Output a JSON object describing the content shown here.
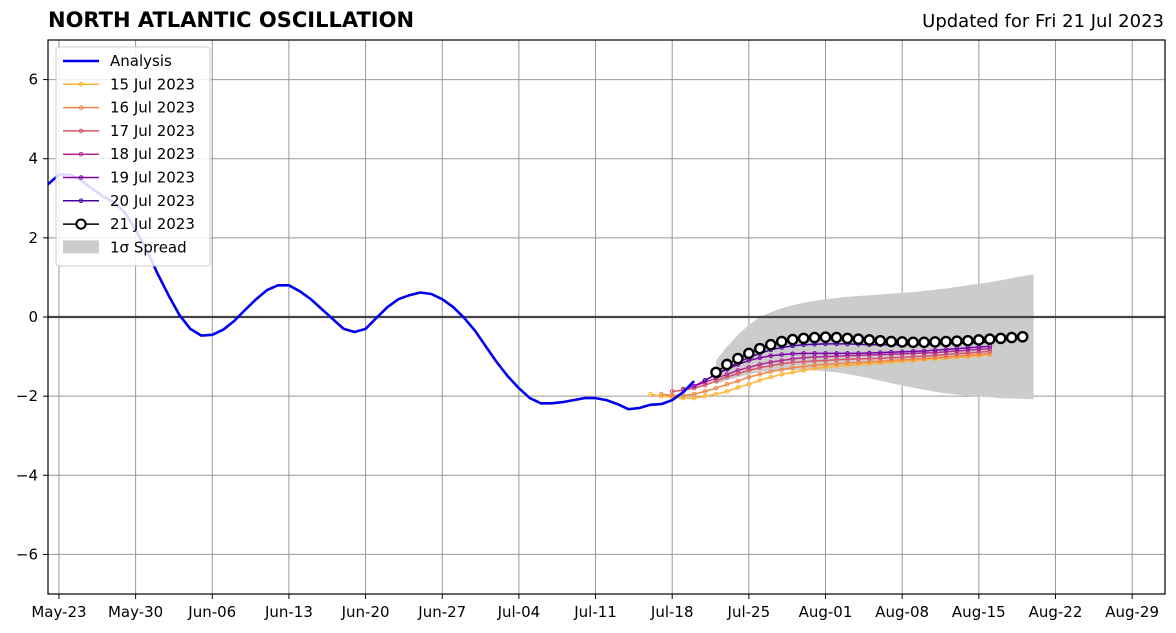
{
  "chart_data": {
    "type": "line",
    "title": "NORTH ATLANTIC OSCILLATION",
    "subtitle": "Updated for Fri 21 Jul 2023",
    "xlabel": "",
    "ylabel": "",
    "xlim": [
      "2023-05-22",
      "2023-09-01"
    ],
    "ylim": [
      -7,
      7
    ],
    "x_ticks": [
      "2023-05-23",
      "2023-05-30",
      "2023-06-06",
      "2023-06-13",
      "2023-06-20",
      "2023-06-27",
      "2023-07-04",
      "2023-07-11",
      "2023-07-18",
      "2023-07-25",
      "2023-08-01",
      "2023-08-08",
      "2023-08-15",
      "2023-08-22",
      "2023-08-29"
    ],
    "x_tick_labels": [
      "May-23",
      "May-30",
      "Jun-06",
      "Jun-13",
      "Jun-20",
      "Jun-27",
      "Jul-04",
      "Jul-11",
      "Jul-18",
      "Jul-25",
      "Aug-01",
      "Aug-08",
      "Aug-15",
      "Aug-22",
      "Aug-29"
    ],
    "y_ticks": [
      -6,
      -4,
      -2,
      0,
      2,
      4,
      6
    ],
    "y_tick_labels": [
      "−6",
      "−4",
      "−2",
      "0",
      "2",
      "4",
      "6"
    ],
    "grid": true,
    "legend_position": "top-left",
    "zero_line": 0,
    "analysis": {
      "name": "Analysis",
      "color": "#0000ee",
      "start": "2023-05-22",
      "values": [
        3.35,
        3.6,
        3.6,
        3.45,
        3.25,
        3.05,
        2.9,
        2.65,
        2.2,
        1.7,
        1.1,
        0.55,
        0.05,
        -0.3,
        -0.47,
        -0.45,
        -0.32,
        -0.1,
        0.18,
        0.45,
        0.68,
        0.8,
        0.8,
        0.65,
        0.45,
        0.2,
        -0.05,
        -0.3,
        -0.38,
        -0.3,
        -0.02,
        0.25,
        0.45,
        0.55,
        0.62,
        0.58,
        0.45,
        0.25,
        -0.02,
        -0.35,
        -0.75,
        -1.15,
        -1.5,
        -1.8,
        -2.05,
        -2.18,
        -2.18,
        -2.15,
        -2.1,
        -2.05,
        -2.05,
        -2.1,
        -2.2,
        -2.33,
        -2.3,
        -2.22,
        -2.2,
        -2.1,
        -1.9,
        -1.62
      ]
    },
    "forecasts": [
      {
        "name": "15 Jul 2023",
        "color": "#fdb42f",
        "start": "2023-07-16",
        "values": [
          -1.95,
          -2.0,
          -2.03,
          -2.05,
          -2.05,
          -2.0,
          -1.95,
          -1.88,
          -1.78,
          -1.7,
          -1.6,
          -1.52,
          -1.45,
          -1.4,
          -1.35,
          -1.3,
          -1.27,
          -1.24,
          -1.22,
          -1.2,
          -1.18,
          -1.16,
          -1.14,
          -1.12,
          -1.1,
          -1.08,
          -1.06,
          -1.04,
          -1.02,
          -1.0,
          -0.98,
          -0.95
        ]
      },
      {
        "name": "16 Jul 2023",
        "color": "#f28848",
        "start": "2023-07-17",
        "values": [
          -1.95,
          -1.98,
          -1.98,
          -1.95,
          -1.88,
          -1.8,
          -1.7,
          -1.62,
          -1.52,
          -1.45,
          -1.38,
          -1.33,
          -1.28,
          -1.25,
          -1.22,
          -1.2,
          -1.18,
          -1.16,
          -1.15,
          -1.13,
          -1.12,
          -1.1,
          -1.08,
          -1.07,
          -1.05,
          -1.03,
          -1.01,
          -0.99,
          -0.97,
          -0.95,
          -0.93
        ]
      },
      {
        "name": "17 Jul 2023",
        "color": "#d8576b",
        "start": "2023-07-18",
        "values": [
          -1.88,
          -1.85,
          -1.8,
          -1.72,
          -1.62,
          -1.52,
          -1.43,
          -1.35,
          -1.28,
          -1.23,
          -1.18,
          -1.15,
          -1.13,
          -1.11,
          -1.1,
          -1.08,
          -1.07,
          -1.06,
          -1.05,
          -1.04,
          -1.03,
          -1.02,
          -1.0,
          -0.99,
          -0.97,
          -0.95,
          -0.93,
          -0.91,
          -0.89,
          -0.87
        ]
      },
      {
        "name": "18 Jul 2023",
        "color": "#b12a90",
        "start": "2023-07-19",
        "values": [
          -1.82,
          -1.75,
          -1.65,
          -1.55,
          -1.45,
          -1.35,
          -1.27,
          -1.2,
          -1.14,
          -1.1,
          -1.06,
          -1.03,
          -1.01,
          -1.0,
          -0.99,
          -0.98,
          -0.97,
          -0.96,
          -0.95,
          -0.94,
          -0.93,
          -0.92,
          -0.91,
          -0.9,
          -0.88,
          -0.86,
          -0.84,
          -0.82,
          -0.8
        ]
      },
      {
        "name": "19 Jul 2023",
        "color": "#7e03a8",
        "start": "2023-07-20",
        "values": [
          -1.75,
          -1.6,
          -1.45,
          -1.32,
          -1.2,
          -1.1,
          -1.03,
          -0.98,
          -0.95,
          -0.93,
          -0.92,
          -0.92,
          -0.92,
          -0.92,
          -0.92,
          -0.92,
          -0.91,
          -0.9,
          -0.89,
          -0.88,
          -0.87,
          -0.86,
          -0.84,
          -0.82,
          -0.8,
          -0.78,
          -0.76,
          -0.74
        ]
      },
      {
        "name": "20 Jul 2023",
        "color": "#47039f",
        "start": "2023-07-21",
        "values": [
          -1.6,
          -1.45,
          -1.3,
          -1.15,
          -1.02,
          -0.92,
          -0.83,
          -0.77,
          -0.73,
          -0.7,
          -0.69,
          -0.68,
          -0.68,
          -0.68,
          -0.69,
          -0.7,
          -0.7,
          -0.7,
          -0.7,
          -0.7,
          -0.7,
          -0.69,
          -0.68,
          -0.67,
          -0.66,
          -0.65,
          -0.64
        ]
      }
    ],
    "latest": {
      "name": "21 Jul 2023",
      "color": "#000000",
      "start": "2023-07-22",
      "values": [
        -1.4,
        -1.2,
        -1.05,
        -0.92,
        -0.8,
        -0.7,
        -0.62,
        -0.57,
        -0.54,
        -0.52,
        -0.51,
        -0.52,
        -0.54,
        -0.56,
        -0.58,
        -0.6,
        -0.62,
        -0.63,
        -0.64,
        -0.64,
        -0.63,
        -0.62,
        -0.61,
        -0.6,
        -0.58,
        -0.56,
        -0.54,
        -0.52,
        -0.5
      ]
    },
    "spread": {
      "name": "1σ Spread",
      "color": "#cccccc",
      "start": "2023-07-22",
      "upper": [
        -1.1,
        -0.75,
        -0.45,
        -0.2,
        0.0,
        0.12,
        0.22,
        0.3,
        0.36,
        0.41,
        0.45,
        0.48,
        0.51,
        0.53,
        0.55,
        0.57,
        0.59,
        0.61,
        0.63,
        0.66,
        0.69,
        0.72,
        0.76,
        0.8,
        0.84,
        0.88,
        0.93,
        0.98,
        1.03,
        1.08
      ],
      "lower": [
        -1.7,
        -1.6,
        -1.52,
        -1.45,
        -1.4,
        -1.37,
        -1.35,
        -1.34,
        -1.34,
        -1.35,
        -1.37,
        -1.4,
        -1.44,
        -1.49,
        -1.55,
        -1.61,
        -1.67,
        -1.73,
        -1.79,
        -1.84,
        -1.89,
        -1.93,
        -1.96,
        -1.99,
        -2.01,
        -2.03,
        -2.05,
        -2.06,
        -2.07,
        -2.08
      ]
    }
  }
}
